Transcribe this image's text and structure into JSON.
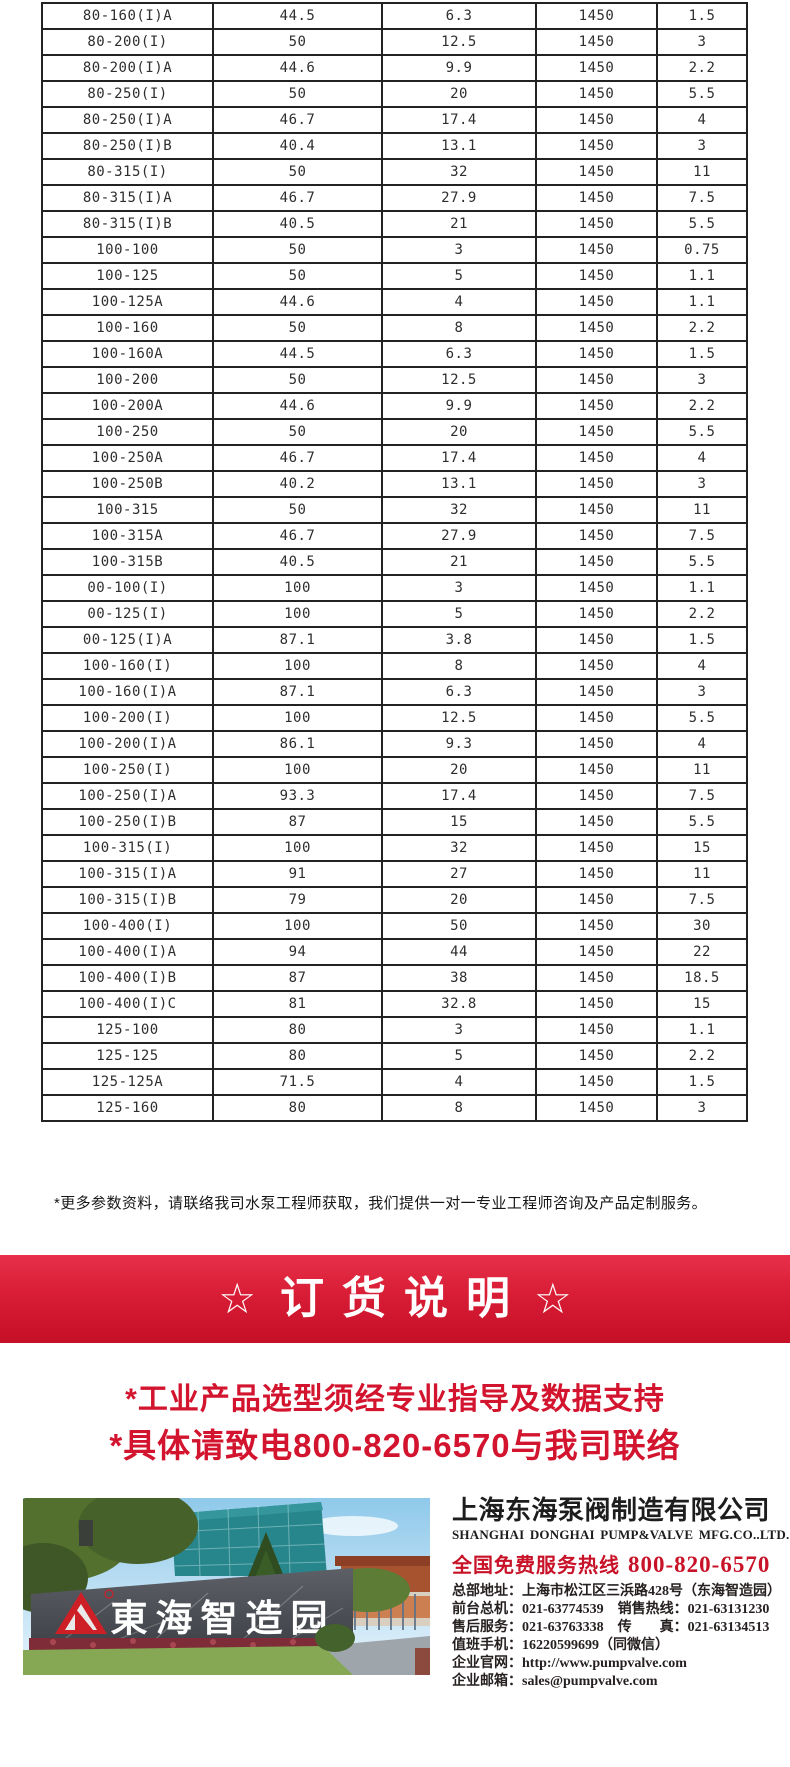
{
  "colors": {
    "banner_red_top": "#e8304a",
    "banner_red_mid": "#d81d35",
    "banner_red_bottom": "#c50f27",
    "advisory_red": "#d3142e",
    "hotline_red": "#c81228"
  },
  "table": {
    "rows": [
      [
        "80-160(I)A",
        "44.5",
        "6.3",
        "1450",
        "1.5"
      ],
      [
        "80-200(I)",
        "50",
        "12.5",
        "1450",
        "3"
      ],
      [
        "80-200(I)A",
        "44.6",
        "9.9",
        "1450",
        "2.2"
      ],
      [
        "80-250(I)",
        "50",
        "20",
        "1450",
        "5.5"
      ],
      [
        "80-250(I)A",
        "46.7",
        "17.4",
        "1450",
        "4"
      ],
      [
        "80-250(I)B",
        "40.4",
        "13.1",
        "1450",
        "3"
      ],
      [
        "80-315(I)",
        "50",
        "32",
        "1450",
        "11"
      ],
      [
        "80-315(I)A",
        "46.7",
        "27.9",
        "1450",
        "7.5"
      ],
      [
        "80-315(I)B",
        "40.5",
        "21",
        "1450",
        "5.5"
      ],
      [
        "100-100",
        "50",
        "3",
        "1450",
        "0.75"
      ],
      [
        "100-125",
        "50",
        "5",
        "1450",
        "1.1"
      ],
      [
        "100-125A",
        "44.6",
        "4",
        "1450",
        "1.1"
      ],
      [
        "100-160",
        "50",
        "8",
        "1450",
        "2.2"
      ],
      [
        "100-160A",
        "44.5",
        "6.3",
        "1450",
        "1.5"
      ],
      [
        "100-200",
        "50",
        "12.5",
        "1450",
        "3"
      ],
      [
        "100-200A",
        "44.6",
        "9.9",
        "1450",
        "2.2"
      ],
      [
        "100-250",
        "50",
        "20",
        "1450",
        "5.5"
      ],
      [
        "100-250A",
        "46.7",
        "17.4",
        "1450",
        "4"
      ],
      [
        "100-250B",
        "40.2",
        "13.1",
        "1450",
        "3"
      ],
      [
        "100-315",
        "50",
        "32",
        "1450",
        "11"
      ],
      [
        "100-315A",
        "46.7",
        "27.9",
        "1450",
        "7.5"
      ],
      [
        "100-315B",
        "40.5",
        "21",
        "1450",
        "5.5"
      ],
      [
        "00-100(I)",
        "100",
        "3",
        "1450",
        "1.1"
      ],
      [
        "00-125(I)",
        "100",
        "5",
        "1450",
        "2.2"
      ],
      [
        "00-125(I)A",
        "87.1",
        "3.8",
        "1450",
        "1.5"
      ],
      [
        "100-160(I)",
        "100",
        "8",
        "1450",
        "4"
      ],
      [
        "100-160(I)A",
        "87.1",
        "6.3",
        "1450",
        "3"
      ],
      [
        "100-200(I)",
        "100",
        "12.5",
        "1450",
        "5.5"
      ],
      [
        "100-200(I)A",
        "86.1",
        "9.3",
        "1450",
        "4"
      ],
      [
        "100-250(I)",
        "100",
        "20",
        "1450",
        "11"
      ],
      [
        "100-250(I)A",
        "93.3",
        "17.4",
        "1450",
        "7.5"
      ],
      [
        "100-250(I)B",
        "87",
        "15",
        "1450",
        "5.5"
      ],
      [
        "100-315(I)",
        "100",
        "32",
        "1450",
        "15"
      ],
      [
        "100-315(I)A",
        "91",
        "27",
        "1450",
        "11"
      ],
      [
        "100-315(I)B",
        "79",
        "20",
        "1450",
        "7.5"
      ],
      [
        "100-400(I)",
        "100",
        "50",
        "1450",
        "30"
      ],
      [
        "100-400(I)A",
        "94",
        "44",
        "1450",
        "22"
      ],
      [
        "100-400(I)B",
        "87",
        "38",
        "1450",
        "18.5"
      ],
      [
        "100-400(I)C",
        "81",
        "32.8",
        "1450",
        "15"
      ],
      [
        "125-100",
        "80",
        "3",
        "1450",
        "1.1"
      ],
      [
        "125-125",
        "80",
        "5",
        "1450",
        "2.2"
      ],
      [
        "125-125A",
        "71.5",
        "4",
        "1450",
        "1.5"
      ],
      [
        "125-160",
        "80",
        "8",
        "1450",
        "3"
      ]
    ]
  },
  "note": "*更多参数资料，请联络我司水泵工程师获取，我们提供一对一专业工程师咨询及产品定制服务。",
  "banner": {
    "star_left": "☆",
    "title": "订货说明",
    "star_right": "☆"
  },
  "advisory": {
    "line1": "*工业产品选型须经专业指导及数据支持",
    "line2": "*具体请致电800-820-6570与我司联络"
  },
  "footer": {
    "photo": {
      "sign_text": "東海智造园",
      "logo_icon": "donghai-triangle-logo"
    },
    "company_cn": "上海东海泵阀制造有限公司",
    "company_en": "SHANGHAI DONGHAI PUMP&VALVE MFG.CO..LTD.",
    "hotline_label": "全国免费服务热线",
    "hotline_number": "800-820-6570",
    "contacts": [
      {
        "pairs": [
          {
            "label": "总部地址：",
            "value": "上海市松江区三浜路428号（东海智造园）"
          }
        ]
      },
      {
        "pairs": [
          {
            "label": "前台总机：",
            "value": "021-63774539"
          },
          {
            "label": "销售热线：",
            "value": "021-63131230"
          }
        ]
      },
      {
        "pairs": [
          {
            "label": "售后服务：",
            "value": "021-63763338"
          },
          {
            "label": "传　　真：",
            "value": "021-63134513"
          }
        ]
      },
      {
        "pairs": [
          {
            "label": "值班手机：",
            "value": "16220599699（同微信）"
          }
        ]
      },
      {
        "pairs": [
          {
            "label": "企业官网：",
            "value": "http://www.pumpvalve.com"
          }
        ]
      },
      {
        "pairs": [
          {
            "label": "企业邮箱：",
            "value": "sales@pumpvalve.com"
          }
        ]
      }
    ]
  }
}
